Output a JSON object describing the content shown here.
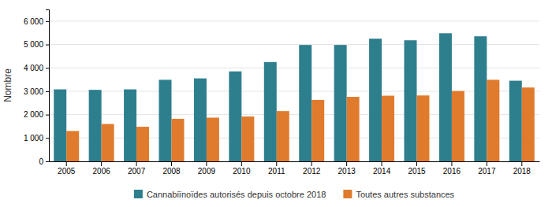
{
  "chart_data": {
    "type": "bar",
    "categories": [
      "2005",
      "2006",
      "2007",
      "2008",
      "2009",
      "2010",
      "2011",
      "2012",
      "2013",
      "2014",
      "2015",
      "2016",
      "2017",
      "2018"
    ],
    "series": [
      {
        "name": "Cannabiïnoïdes autorisés depuis octobre 2018",
        "color": "#2e7f8e",
        "values": [
          3080,
          3060,
          3080,
          3490,
          3550,
          3850,
          4250,
          4980,
          4980,
          5250,
          5180,
          5480,
          5350,
          3450
        ]
      },
      {
        "name": "Toutes autres substances",
        "color": "#e07b2e",
        "values": [
          1300,
          1600,
          1480,
          1820,
          1870,
          1920,
          2150,
          2630,
          2760,
          2810,
          2820,
          3010,
          3490,
          3160
        ]
      }
    ],
    "ylabel": "Nombre",
    "ylim": [
      0,
      6500
    ],
    "yticks": [
      0,
      {
        "value": 1000,
        "label": "1 000"
      },
      {
        "value": 2000,
        "label": "2 000"
      },
      {
        "value": 3000,
        "label": "3 000"
      },
      {
        "value": 4000,
        "label": "4 000"
      },
      {
        "value": 5000,
        "label": "5 000"
      },
      {
        "value": 6000,
        "label": "6 000"
      }
    ],
    "grid": true,
    "legend": "bottom"
  }
}
